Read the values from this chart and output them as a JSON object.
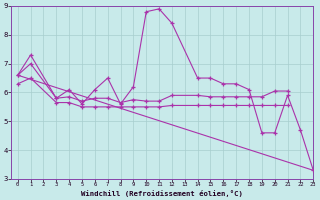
{
  "xlabel": "Windchill (Refroidissement éolien,°C)",
  "series": {
    "jagged": {
      "x": [
        0,
        1,
        3,
        4,
        5,
        6,
        7,
        8,
        9,
        10,
        11,
        12,
        14,
        15,
        16,
        17,
        18,
        19,
        20,
        21,
        22,
        23
      ],
      "y": [
        6.6,
        7.3,
        5.8,
        6.1,
        5.6,
        6.1,
        6.5,
        5.6,
        6.2,
        8.8,
        8.9,
        8.4,
        6.5,
        6.5,
        6.3,
        6.3,
        6.1,
        4.6,
        4.6,
        5.9,
        4.7,
        3.3
      ]
    },
    "mid": {
      "x": [
        0,
        1,
        3,
        4,
        5,
        6,
        7,
        8,
        9,
        10,
        11,
        12,
        14,
        15,
        16,
        17,
        18,
        19,
        20,
        21
      ],
      "y": [
        6.6,
        7.0,
        5.8,
        5.85,
        5.7,
        5.8,
        5.8,
        5.65,
        5.75,
        5.7,
        5.7,
        5.9,
        5.9,
        5.85,
        5.85,
        5.85,
        5.85,
        5.85,
        6.05,
        6.05
      ]
    },
    "lower": {
      "x": [
        0,
        1,
        3,
        4,
        5,
        6,
        7,
        8,
        9,
        10,
        11,
        12,
        14,
        15,
        16,
        17,
        18,
        19,
        20,
        21
      ],
      "y": [
        6.3,
        6.5,
        5.65,
        5.65,
        5.5,
        5.5,
        5.5,
        5.5,
        5.5,
        5.5,
        5.5,
        5.55,
        5.55,
        5.55,
        5.55,
        5.55,
        5.55,
        5.55,
        5.55,
        5.55
      ]
    },
    "trend": {
      "x": [
        0,
        23
      ],
      "y": [
        6.6,
        3.3
      ]
    }
  },
  "color": "#aa33aa",
  "bg_color": "#c8eaea",
  "grid_color": "#a8cece",
  "ylim": [
    3,
    9
  ],
  "xlim": [
    -0.5,
    23
  ],
  "yticks": [
    3,
    4,
    5,
    6,
    7,
    8,
    9
  ],
  "xticks": [
    0,
    1,
    2,
    3,
    4,
    5,
    6,
    7,
    8,
    9,
    10,
    11,
    12,
    13,
    14,
    15,
    16,
    17,
    18,
    19,
    20,
    21,
    22,
    23
  ],
  "spine_color": "#8844aa"
}
